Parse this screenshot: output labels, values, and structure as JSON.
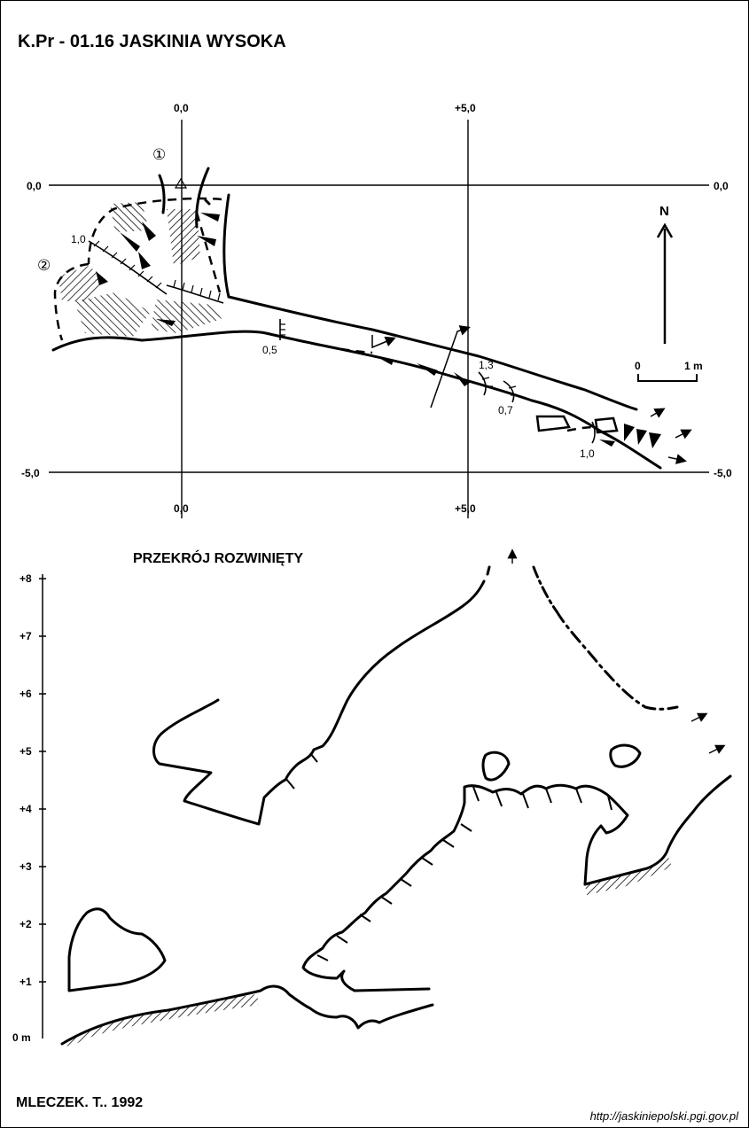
{
  "title": "K.Pr - 01.16 JASKINIA WYSOKA",
  "plan": {
    "x_labels_top": [
      "0,0",
      "+5,0"
    ],
    "x_labels_bottom": [
      "0,0",
      "+5,0"
    ],
    "y_labels": [
      "0,0",
      "-5,0"
    ],
    "north": "N",
    "scale": {
      "start": "0",
      "end": "1 m"
    },
    "entrances": [
      "①",
      "②"
    ],
    "dims": [
      "1,0",
      "0,5",
      "1,3",
      "0,7",
      "1,0"
    ]
  },
  "section": {
    "title": "PRZEKRÓJ ROZWINIĘTY",
    "y_ticks": [
      "+8",
      "+7",
      "+6",
      "+5",
      "+4",
      "+3",
      "+2",
      "+1",
      "0 m"
    ]
  },
  "author": "MLECZEK. T.. 1992",
  "url": "http://jaskiniepolski.pgi.gov.pl"
}
